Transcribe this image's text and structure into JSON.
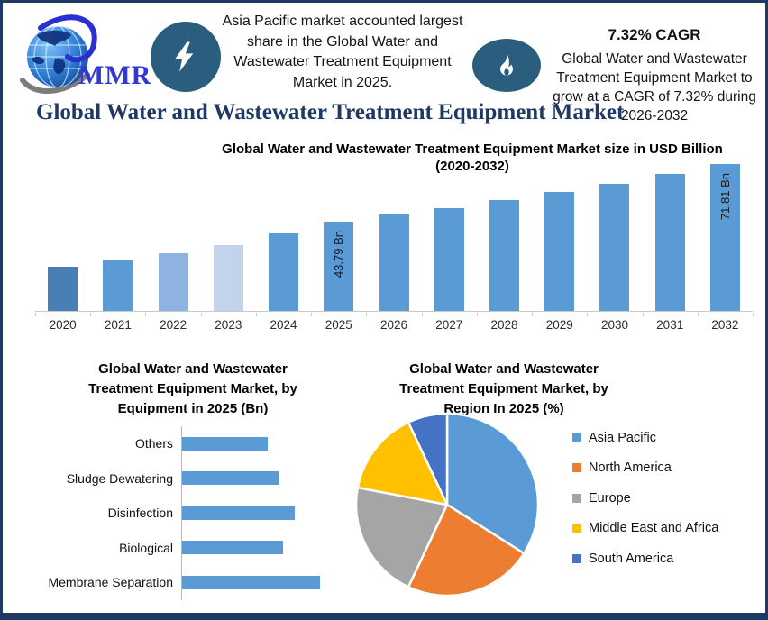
{
  "brand": {
    "logo_text": "MMR"
  },
  "header": {
    "highlight": "Asia Pacific market accounted largest share in the Global Water and Wastewater Treatment Equipment Market in 2025.",
    "cagr_title": "7.32% CAGR",
    "cagr_text": "Global Water and Wastewater Treatment Equipment Market to grow at a CAGR of 7.32% during 2026-2032"
  },
  "page_title": "Global Water and Wastewater Treatment Equipment Market",
  "colors": {
    "frame_navy": "#1f3864",
    "badge_blue": "#2b5d7e",
    "bar_blue": "#5b9bd5"
  },
  "chart_data": [
    {
      "type": "bar",
      "title": "Global Water and Wastewater Treatment Equipment Market size in USD Billion",
      "subtitle": "(2020-2032)",
      "unit": "USD Billion",
      "categories": [
        "2020",
        "2021",
        "2022",
        "2023",
        "2024",
        "2025",
        "2026",
        "2027",
        "2028",
        "2029",
        "2030",
        "2031",
        "2032"
      ],
      "values": [
        21.4,
        24.6,
        28.3,
        32.4,
        37.9,
        43.79,
        47.0,
        50.4,
        54.1,
        58.1,
        62.3,
        66.9,
        71.81
      ],
      "data_labels": {
        "2025": "43.79 Bn",
        "2032": "71.81 Bn"
      },
      "bar_colors": [
        "#4a7fb5",
        "#5b9bd5",
        "#8fb3e0",
        "#c2d4ec",
        "#5b9bd5",
        "#5b9bd5",
        "#5b9bd5",
        "#5b9bd5",
        "#5b9bd5",
        "#5b9bd5",
        "#5b9bd5",
        "#5b9bd5",
        "#5b9bd5"
      ],
      "ylim": [
        0,
        75
      ],
      "grid": false,
      "legend": false
    },
    {
      "type": "bar",
      "orientation": "horizontal",
      "title": "Global Water and Wastewater Treatment Equipment Market, by Equipment in 2025 (Bn)",
      "unit": "Bn",
      "categories": [
        "Others",
        "Sludge Dewatering",
        "Disinfection",
        "Biological",
        "Membrane Separation"
      ],
      "values": [
        7.0,
        8.0,
        9.2,
        8.3,
        11.3
      ],
      "bar_color": "#5b9bd5",
      "grid": false,
      "legend": false
    },
    {
      "type": "pie",
      "title": "Global Water and Wastewater Treatment Equipment Market, by Region In 2025 (%)",
      "unit": "%",
      "labels": [
        "Asia Pacific",
        "North America",
        "Europe",
        "Middle East and Africa",
        "South America"
      ],
      "values": [
        34,
        23,
        21,
        15,
        7
      ],
      "colors": [
        "#5b9bd5",
        "#ed7d31",
        "#a5a5a5",
        "#ffc000",
        "#4472c4"
      ],
      "legend_position": "right"
    }
  ]
}
